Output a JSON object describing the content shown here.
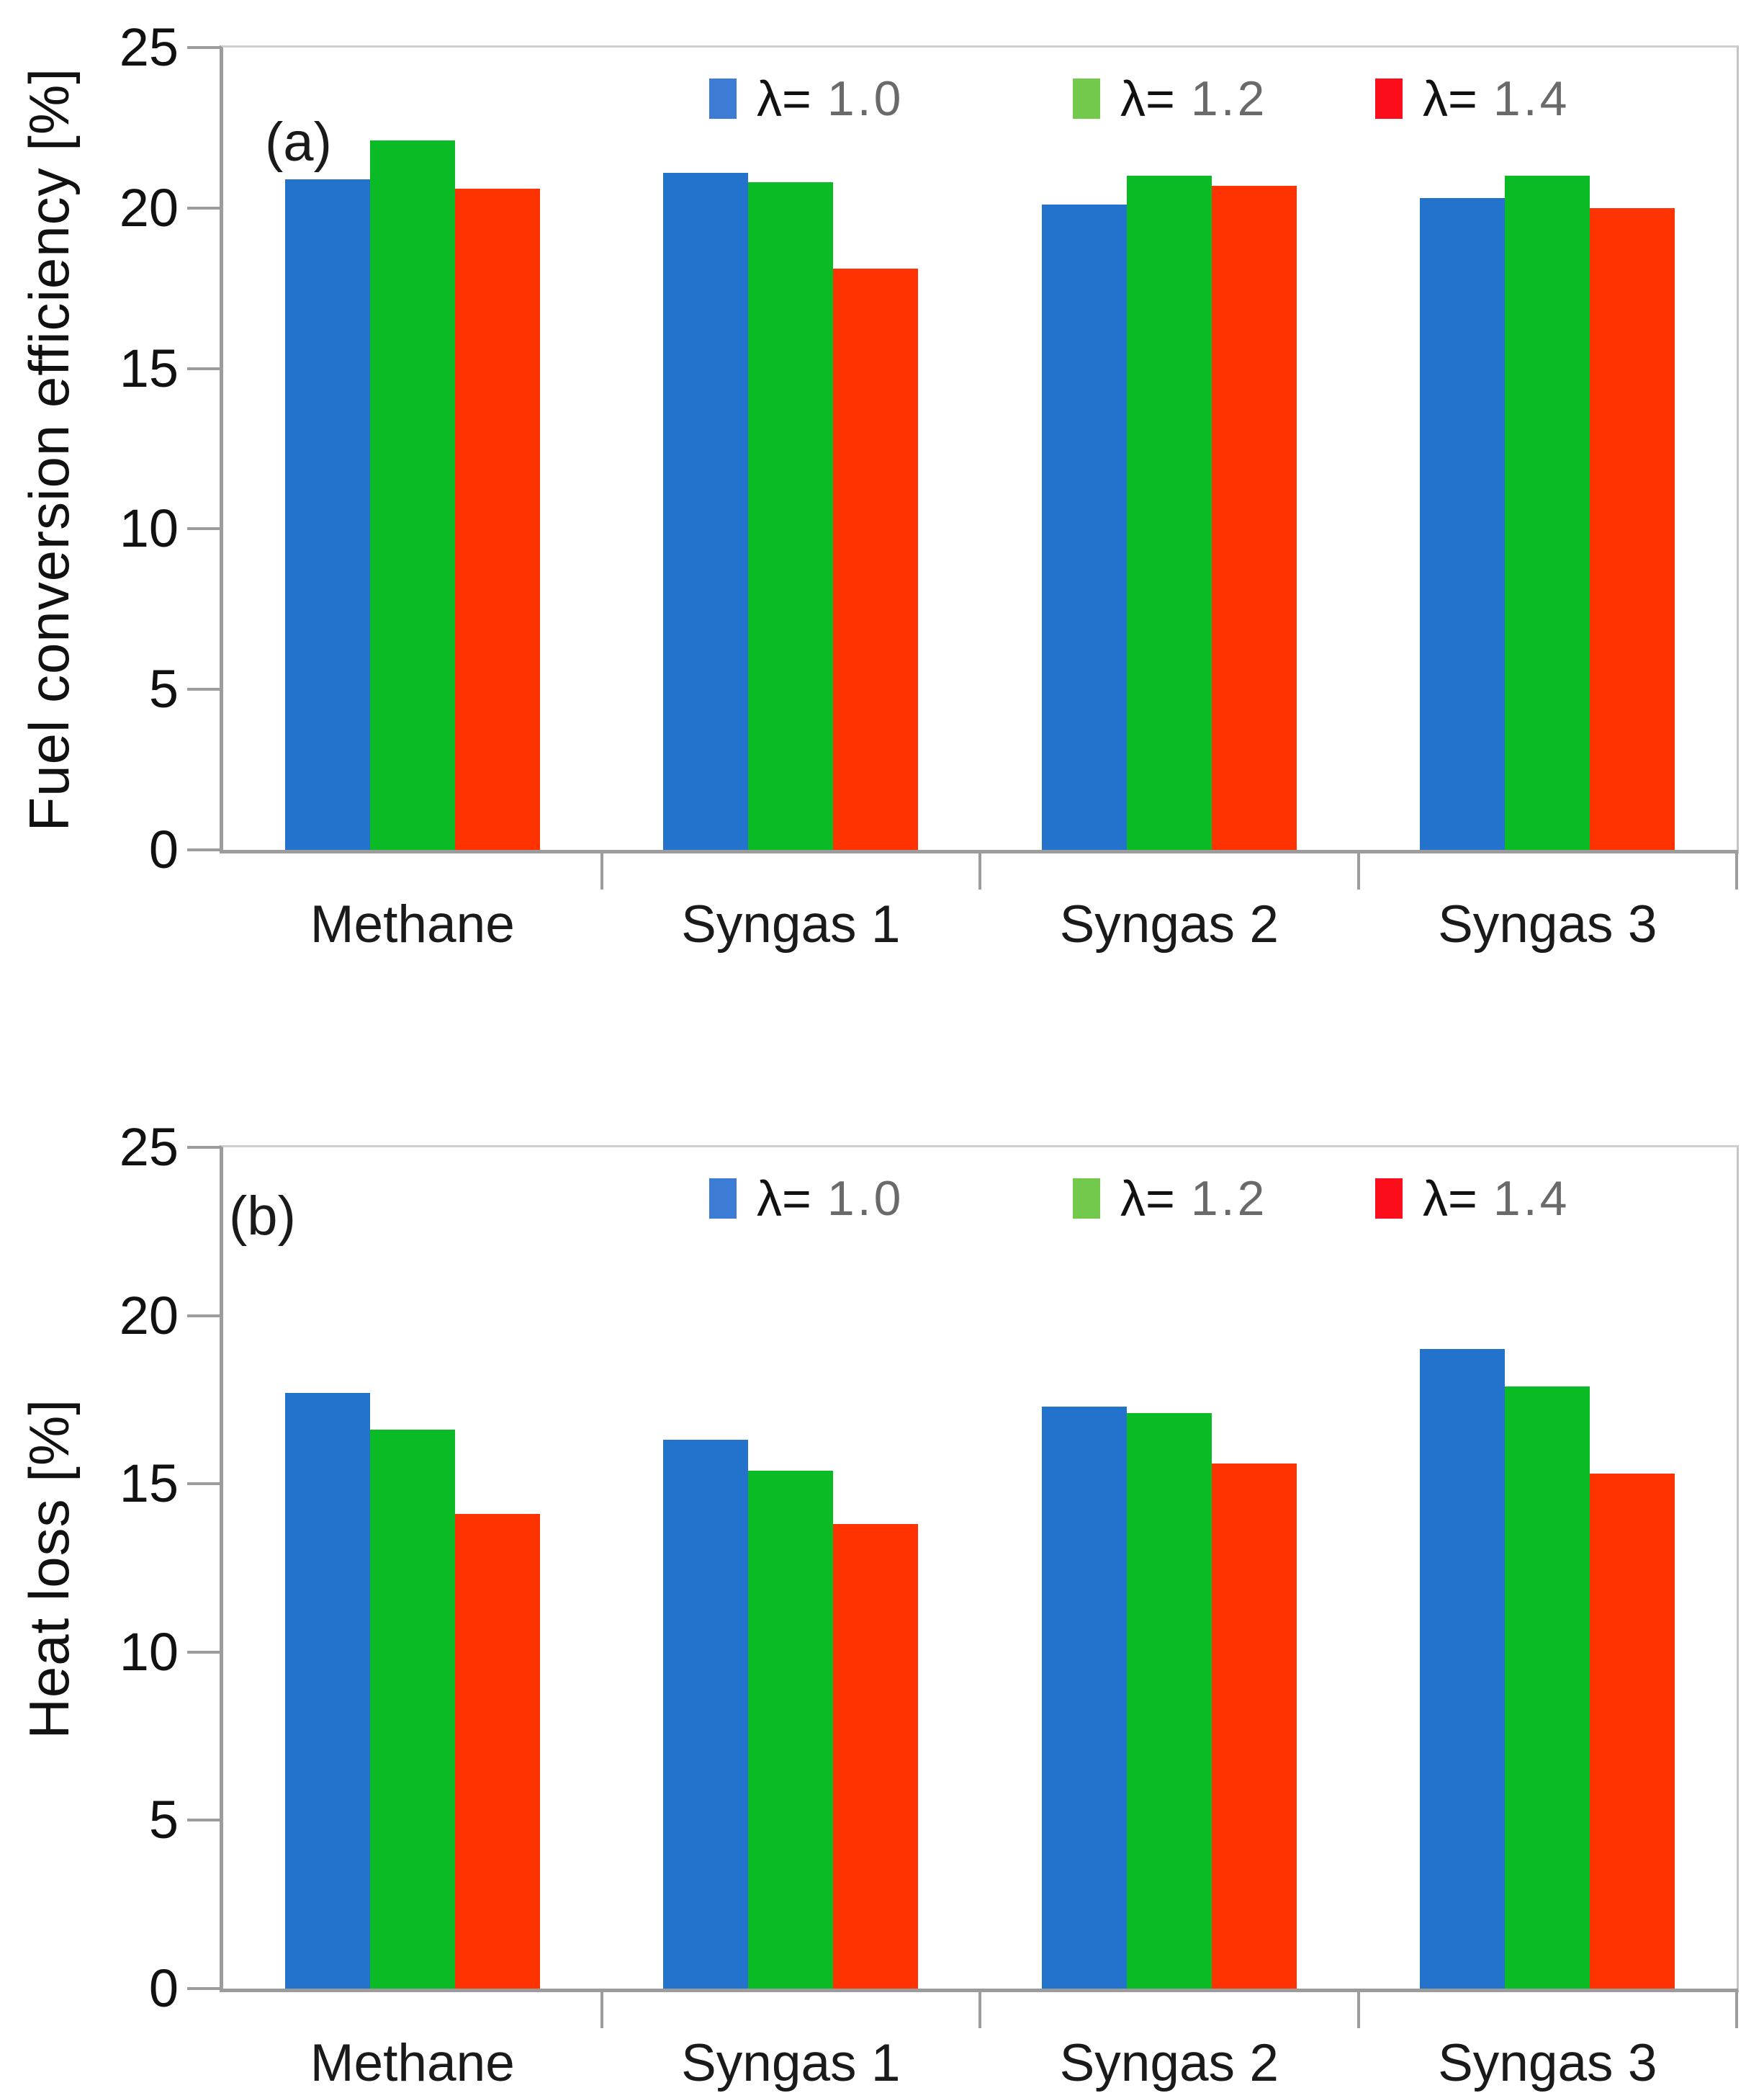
{
  "chart_data": [
    {
      "panel_label": "(a)",
      "type": "bar",
      "ylabel": "Fuel conversion efficiency [%]",
      "xlabel": "",
      "ylim": [
        0,
        25
      ],
      "yticks": [
        0,
        5,
        10,
        15,
        20,
        25
      ],
      "grid": "off",
      "legend_position": "top-inside",
      "categories": [
        "Methane",
        "Syngas 1",
        "Syngas 2",
        "Syngas 3"
      ],
      "series": [
        {
          "name": "λ= 1.0",
          "color": "#2373CD",
          "values": [
            20.9,
            21.1,
            20.1,
            20.3
          ]
        },
        {
          "name": "λ= 1.2",
          "color": "#0ABB25",
          "values": [
            22.1,
            20.8,
            21.0,
            21.0
          ]
        },
        {
          "name": "λ= 1.4",
          "color": "#FE3301",
          "values": [
            20.6,
            18.1,
            20.7,
            20.0
          ]
        }
      ],
      "legend": [
        {
          "prefix": "λ=",
          "value": "1.0",
          "swatch": "#3C7CD5"
        },
        {
          "prefix": "λ=",
          "value": "1.2",
          "swatch": "#72C94B"
        },
        {
          "prefix": "λ=",
          "value": "1.4",
          "swatch": "#FC0D1B"
        }
      ]
    },
    {
      "panel_label": "(b)",
      "type": "bar",
      "ylabel": "Heat loss [%]",
      "xlabel": "",
      "ylim": [
        0,
        25
      ],
      "yticks": [
        0,
        5,
        10,
        15,
        20,
        25
      ],
      "grid": "off",
      "legend_position": "top-inside",
      "categories": [
        "Methane",
        "Syngas 1",
        "Syngas 2",
        "Syngas 3"
      ],
      "series": [
        {
          "name": "λ= 1.0",
          "color": "#2373CD",
          "values": [
            17.7,
            16.3,
            17.3,
            19.0
          ]
        },
        {
          "name": "λ= 1.2",
          "color": "#0ABB25",
          "values": [
            16.6,
            15.4,
            17.1,
            17.9
          ]
        },
        {
          "name": "λ= 1.4",
          "color": "#FE3301",
          "values": [
            14.1,
            13.8,
            15.6,
            15.3
          ]
        }
      ],
      "legend": [
        {
          "prefix": "λ=",
          "value": "1.0",
          "swatch": "#3C7CD5"
        },
        {
          "prefix": "λ=",
          "value": "1.2",
          "swatch": "#72C94B"
        },
        {
          "prefix": "λ=",
          "value": "1.4",
          "swatch": "#FC0D1B"
        }
      ]
    }
  ]
}
